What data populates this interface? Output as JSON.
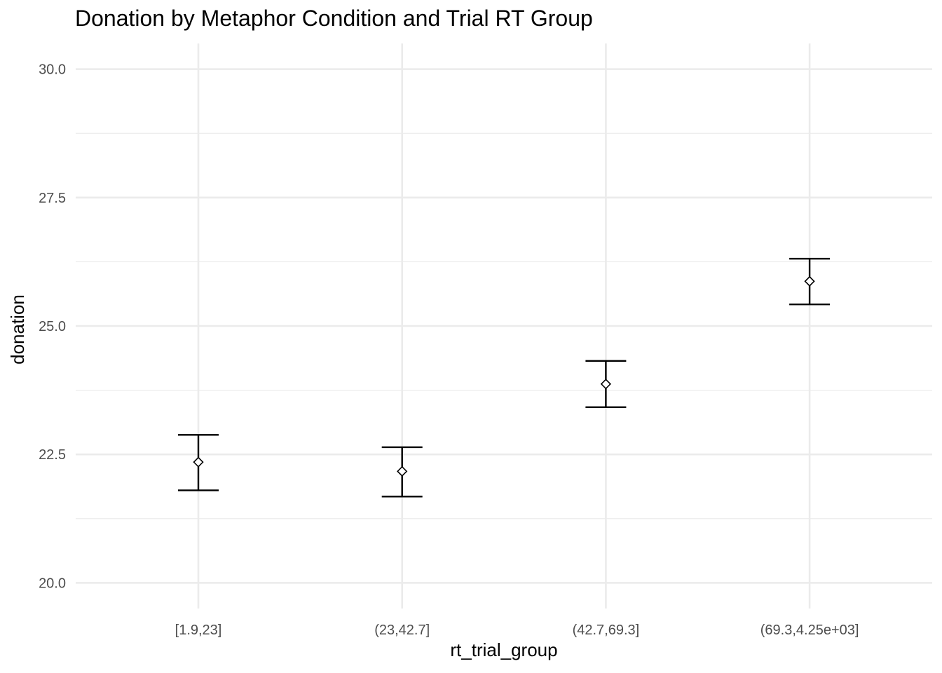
{
  "chart_data": {
    "type": "errorbar",
    "title": "Donation by Metaphor Condition and Trial RT Group",
    "xlabel": "rt_trial_group",
    "ylabel": "donation",
    "categories": [
      "[1.9,23]",
      "(23,42.7]",
      "(42.7,69.3]",
      "(69.3,4.25e+03]"
    ],
    "means": [
      22.35,
      22.17,
      23.87,
      25.87
    ],
    "lower": [
      21.8,
      21.68,
      23.42,
      25.42
    ],
    "upper": [
      22.88,
      22.64,
      24.32,
      26.31
    ],
    "ylim": [
      19.5,
      30.5
    ],
    "yticks": [
      20.0,
      22.5,
      25.0,
      27.5,
      30.0
    ],
    "ytick_labels": [
      "20.0",
      "22.5",
      "25.0",
      "27.5",
      "30.0"
    ],
    "grid": true,
    "marker": "open diamond",
    "colors": {
      "grid": "#ebebeb",
      "bars": "#000000",
      "text": "#4d4d4d"
    }
  }
}
